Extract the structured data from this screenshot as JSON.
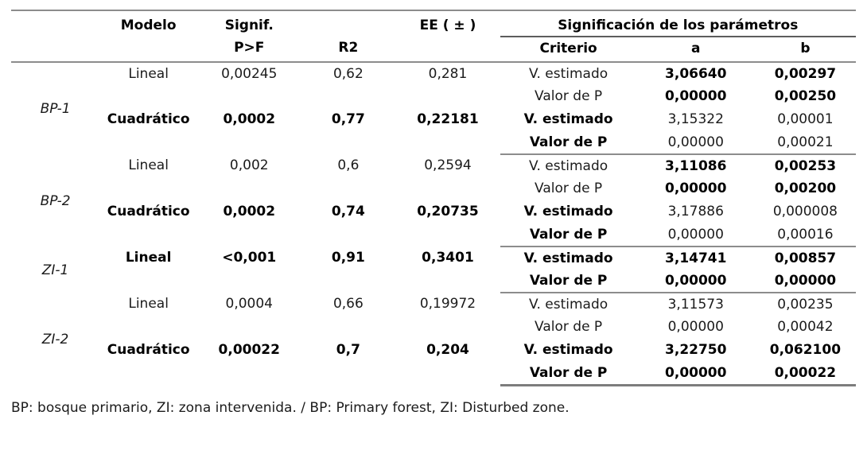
{
  "table": {
    "header": {
      "modelo": "Modelo",
      "signif_line1": "Signif.",
      "signif_line2": "P>F",
      "r2": "R2",
      "ee": "EE ( ± )",
      "group_title": "Significación de los parámetros",
      "criterio": "Criterio",
      "a": "a",
      "b": "b"
    },
    "groups": [
      {
        "label": "BP-1",
        "models": [
          {
            "modelo": {
              "text": "Lineal",
              "bold": false
            },
            "signif": {
              "text": "0,00245",
              "bold": false
            },
            "r2": {
              "text": "0,62",
              "bold": false
            },
            "ee": {
              "text": "0,281",
              "bold": false
            },
            "criteria": [
              {
                "criterio": {
                  "text": "V. estimado",
                  "bold": false
                },
                "a": {
                  "text": "3,06640",
                  "bold": true
                },
                "b": {
                  "text": "0,00297",
                  "bold": true
                }
              },
              {
                "criterio": {
                  "text": "Valor de P",
                  "bold": false
                },
                "a": {
                  "text": "0,00000",
                  "bold": true
                },
                "b": {
                  "text": "0,00250",
                  "bold": true
                }
              }
            ]
          },
          {
            "modelo": {
              "text": "Cuadrático",
              "bold": true
            },
            "signif": {
              "text": "0,0002",
              "bold": true
            },
            "r2": {
              "text": "0,77",
              "bold": true
            },
            "ee": {
              "text": "0,22181",
              "bold": true
            },
            "criteria": [
              {
                "criterio": {
                  "text": "V. estimado",
                  "bold": true
                },
                "a": {
                  "text": "3,15322",
                  "bold": false
                },
                "b": {
                  "text": "0,00001",
                  "bold": false
                }
              },
              {
                "criterio": {
                  "text": "Valor de P",
                  "bold": true
                },
                "a": {
                  "text": "0,00000",
                  "bold": false
                },
                "b": {
                  "text": "0,00021",
                  "bold": false
                }
              }
            ]
          }
        ]
      },
      {
        "label": "BP-2",
        "models": [
          {
            "modelo": {
              "text": "Lineal",
              "bold": false
            },
            "signif": {
              "text": "0,002",
              "bold": false
            },
            "r2": {
              "text": "0,6",
              "bold": false
            },
            "ee": {
              "text": "0,2594",
              "bold": false
            },
            "criteria": [
              {
                "criterio": {
                  "text": "V. estimado",
                  "bold": false
                },
                "a": {
                  "text": "3,11086",
                  "bold": true
                },
                "b": {
                  "text": "0,00253",
                  "bold": true
                }
              },
              {
                "criterio": {
                  "text": "Valor de P",
                  "bold": false
                },
                "a": {
                  "text": "0,00000",
                  "bold": true
                },
                "b": {
                  "text": "0,00200",
                  "bold": true
                }
              }
            ]
          },
          {
            "modelo": {
              "text": "Cuadrático",
              "bold": true
            },
            "signif": {
              "text": "0,0002",
              "bold": true
            },
            "r2": {
              "text": "0,74",
              "bold": true
            },
            "ee": {
              "text": "0,20735",
              "bold": true
            },
            "criteria": [
              {
                "criterio": {
                  "text": "V. estimado",
                  "bold": true
                },
                "a": {
                  "text": "3,17886",
                  "bold": false
                },
                "b": {
                  "text": "0,000008",
                  "bold": false
                }
              },
              {
                "criterio": {
                  "text": "Valor de P",
                  "bold": true
                },
                "a": {
                  "text": "0,00000",
                  "bold": false
                },
                "b": {
                  "text": "0,00016",
                  "bold": false
                }
              }
            ]
          }
        ]
      },
      {
        "label": "ZI-1",
        "models": [
          {
            "modelo": {
              "text": "Lineal",
              "bold": true
            },
            "signif": {
              "text": "<0,001",
              "bold": true
            },
            "r2": {
              "text": "0,91",
              "bold": true
            },
            "ee": {
              "text": "0,3401",
              "bold": true
            },
            "criteria": [
              {
                "criterio": {
                  "text": "V. estimado",
                  "bold": true
                },
                "a": {
                  "text": "3,14741",
                  "bold": true
                },
                "b": {
                  "text": "0,00857",
                  "bold": true
                }
              },
              {
                "criterio": {
                  "text": "Valor de P",
                  "bold": true
                },
                "a": {
                  "text": "0,00000",
                  "bold": true
                },
                "b": {
                  "text": "0,00000",
                  "bold": true
                }
              }
            ]
          }
        ]
      },
      {
        "label": "ZI-2",
        "models": [
          {
            "modelo": {
              "text": "Lineal",
              "bold": false
            },
            "signif": {
              "text": "0,0004",
              "bold": false
            },
            "r2": {
              "text": "0,66",
              "bold": false
            },
            "ee": {
              "text": "0,19972",
              "bold": false
            },
            "criteria": [
              {
                "criterio": {
                  "text": "V. estimado",
                  "bold": false
                },
                "a": {
                  "text": "3,11573",
                  "bold": false
                },
                "b": {
                  "text": "0,00235",
                  "bold": false
                }
              },
              {
                "criterio": {
                  "text": "Valor de P",
                  "bold": false
                },
                "a": {
                  "text": "0,00000",
                  "bold": false
                },
                "b": {
                  "text": "0,00042",
                  "bold": false
                }
              }
            ]
          },
          {
            "modelo": {
              "text": "Cuadrático",
              "bold": true
            },
            "signif": {
              "text": "0,00022",
              "bold": true
            },
            "r2": {
              "text": "0,7",
              "bold": true
            },
            "ee": {
              "text": "0,204",
              "bold": true
            },
            "criteria": [
              {
                "criterio": {
                  "text": "V. estimado",
                  "bold": true
                },
                "a": {
                  "text": "3,22750",
                  "bold": true
                },
                "b": {
                  "text": "0,062100",
                  "bold": true
                }
              },
              {
                "criterio": {
                  "text": "Valor de P",
                  "bold": true
                },
                "a": {
                  "text": "0,00000",
                  "bold": true
                },
                "b": {
                  "text": "0,00022",
                  "bold": true
                }
              }
            ]
          }
        ]
      }
    ]
  },
  "footnote": "BP: bosque primario, ZI: zona intervenida. / BP: Primary forest, ZI: Disturbed zone."
}
